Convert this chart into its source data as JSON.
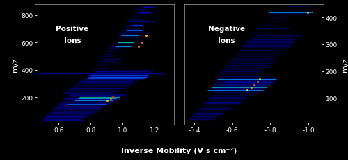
{
  "fig_width": 5.0,
  "fig_height": 2.32,
  "dpi": 100,
  "background_color": "#000000",
  "left_panel": {
    "label_line1": "Positive",
    "label_line2": "Ions",
    "xlim": [
      0.45,
      1.32
    ],
    "ylim": [
      0,
      880
    ],
    "xticks": [
      0.6,
      0.8,
      1.0,
      1.2
    ],
    "yticks": [
      200,
      400,
      600,
      800
    ],
    "ylabel": "m/z"
  },
  "right_panel": {
    "label_line1": "Negative",
    "label_line2": "Ions",
    "xlim": [
      -0.35,
      -1.08
    ],
    "ylim": [
      0,
      450
    ],
    "xticks": [
      -0.4,
      -0.6,
      -0.8,
      -1.0
    ],
    "yticks": [
      100,
      200,
      300,
      400
    ],
    "ylabel": "m/z"
  },
  "xlabel": "Inverse Mobility (V s cm⁻²)",
  "xlabel_fontsize": 8,
  "tick_fontsize": 6.5,
  "ylabel_fontsize": 8,
  "panel_label_fontsize": 7.5
}
